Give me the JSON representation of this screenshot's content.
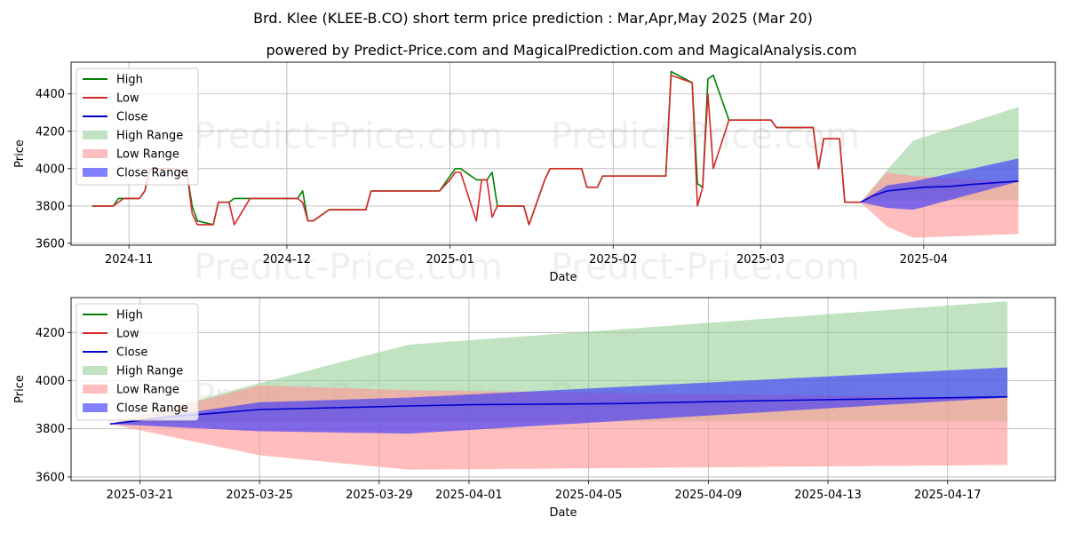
{
  "page": {
    "title": "Brd. Klee (KLEE-B.CO) short term price prediction : Mar,Apr,May 2025 (Mar 20)",
    "subtitle": "powered by Predict-Price.com and MagicalPrediction.com and MagicalAnalysis.com",
    "watermark": "Predict-Price.com"
  },
  "colors": {
    "high": "#008000",
    "low": "#d62728",
    "close": "#0000cc",
    "high_range": "#98d098",
    "low_range": "#ff9a9a",
    "close_range": "#3434ff"
  },
  "legend": [
    "High",
    "Low",
    "Close",
    "High Range",
    "Low Range",
    "Close Range"
  ],
  "chart_data": [
    {
      "type": "line",
      "name": "history",
      "xlabel": "Date",
      "ylabel": "Price",
      "xlim": [
        "2024-10-21",
        "2025-04-26"
      ],
      "ylim": [
        3590,
        4570
      ],
      "xticks": [
        "2024-11-01",
        "2024-12-01",
        "2025-01-01",
        "2025-02-01",
        "2025-03-01",
        "2025-04-01"
      ],
      "xtick_labels": [
        "2024-11",
        "2024-12",
        "2025-01",
        "2025-02",
        "2025-03",
        "2025-04"
      ],
      "yticks": [
        3600,
        3800,
        4000,
        4200,
        4400
      ],
      "grid": true,
      "series": [
        {
          "name": "High",
          "points": [
            [
              "2024-10-25",
              3800
            ],
            [
              "2024-10-29",
              3800
            ],
            [
              "2024-10-30",
              3840
            ],
            [
              "2024-11-03",
              3840
            ],
            [
              "2024-11-04",
              3880
            ],
            [
              "2024-11-05",
              4000
            ],
            [
              "2024-11-07",
              4000
            ],
            [
              "2024-11-08",
              4000
            ],
            [
              "2024-11-10",
              4000
            ],
            [
              "2024-11-11",
              3980
            ],
            [
              "2024-11-12",
              3980
            ],
            [
              "2024-11-13",
              3800
            ],
            [
              "2024-11-14",
              3720
            ],
            [
              "2024-11-17",
              3700
            ],
            [
              "2024-11-18",
              3820
            ],
            [
              "2024-11-20",
              3820
            ],
            [
              "2024-11-21",
              3840
            ],
            [
              "2024-11-25",
              3840
            ],
            [
              "2024-12-01",
              3840
            ],
            [
              "2024-12-03",
              3840
            ],
            [
              "2024-12-04",
              3880
            ],
            [
              "2024-12-05",
              3720
            ],
            [
              "2024-12-06",
              3720
            ],
            [
              "2024-12-08",
              3760
            ],
            [
              "2024-12-09",
              3780
            ],
            [
              "2024-12-16",
              3780
            ],
            [
              "2024-12-17",
              3880
            ],
            [
              "2024-12-30",
              3880
            ],
            [
              "2025-01-01",
              3960
            ],
            [
              "2025-01-02",
              4000
            ],
            [
              "2025-01-03",
              4000
            ],
            [
              "2025-01-06",
              3940
            ],
            [
              "2025-01-08",
              3940
            ],
            [
              "2025-01-09",
              3980
            ],
            [
              "2025-01-10",
              3800
            ],
            [
              "2025-01-15",
              3800
            ],
            [
              "2025-01-16",
              3700
            ],
            [
              "2025-01-19",
              3940
            ],
            [
              "2025-01-20",
              4000
            ],
            [
              "2025-01-26",
              4000
            ],
            [
              "2025-01-27",
              3900
            ],
            [
              "2025-01-29",
              3900
            ],
            [
              "2025-01-30",
              3960
            ],
            [
              "2025-02-11",
              3960
            ],
            [
              "2025-02-12",
              4520
            ],
            [
              "2025-02-16",
              4460
            ],
            [
              "2025-02-17",
              3920
            ],
            [
              "2025-02-18",
              3900
            ],
            [
              "2025-02-19",
              4480
            ],
            [
              "2025-02-20",
              4500
            ],
            [
              "2025-02-23",
              4260
            ],
            [
              "2025-03-03",
              4260
            ],
            [
              "2025-03-04",
              4220
            ],
            [
              "2025-03-11",
              4220
            ],
            [
              "2025-03-12",
              4000
            ],
            [
              "2025-03-13",
              4160
            ],
            [
              "2025-03-16",
              4160
            ],
            [
              "2025-03-17",
              3820
            ],
            [
              "2025-03-20",
              3820
            ]
          ]
        },
        {
          "name": "Low",
          "points": [
            [
              "2024-10-25",
              3800
            ],
            [
              "2024-10-29",
              3800
            ],
            [
              "2024-10-31",
              3840
            ],
            [
              "2024-11-03",
              3840
            ],
            [
              "2024-11-04",
              3880
            ],
            [
              "2024-11-05",
              4000
            ],
            [
              "2024-11-07",
              4000
            ],
            [
              "2024-11-08",
              4000
            ],
            [
              "2024-11-10",
              4000
            ],
            [
              "2024-11-11",
              3980
            ],
            [
              "2024-11-12",
              3980
            ],
            [
              "2024-11-13",
              3760
            ],
            [
              "2024-11-14",
              3700
            ],
            [
              "2024-11-17",
              3700
            ],
            [
              "2024-11-18",
              3820
            ],
            [
              "2024-11-20",
              3820
            ],
            [
              "2024-11-21",
              3700
            ],
            [
              "2024-11-24",
              3840
            ],
            [
              "2024-12-01",
              3840
            ],
            [
              "2024-12-03",
              3840
            ],
            [
              "2024-12-04",
              3820
            ],
            [
              "2024-12-05",
              3720
            ],
            [
              "2024-12-06",
              3720
            ],
            [
              "2024-12-08",
              3760
            ],
            [
              "2024-12-09",
              3780
            ],
            [
              "2024-12-16",
              3780
            ],
            [
              "2024-12-17",
              3880
            ],
            [
              "2024-12-30",
              3880
            ],
            [
              "2025-01-01",
              3940
            ],
            [
              "2025-01-02",
              3980
            ],
            [
              "2025-01-03",
              3980
            ],
            [
              "2025-01-06",
              3720
            ],
            [
              "2025-01-07",
              3940
            ],
            [
              "2025-01-08",
              3940
            ],
            [
              "2025-01-09",
              3740
            ],
            [
              "2025-01-10",
              3800
            ],
            [
              "2025-01-15",
              3800
            ],
            [
              "2025-01-16",
              3700
            ],
            [
              "2025-01-19",
              3940
            ],
            [
              "2025-01-20",
              4000
            ],
            [
              "2025-01-26",
              4000
            ],
            [
              "2025-01-27",
              3900
            ],
            [
              "2025-01-29",
              3900
            ],
            [
              "2025-01-30",
              3960
            ],
            [
              "2025-02-11",
              3960
            ],
            [
              "2025-02-12",
              4500
            ],
            [
              "2025-02-16",
              4460
            ],
            [
              "2025-02-17",
              3800
            ],
            [
              "2025-02-18",
              3900
            ],
            [
              "2025-02-19",
              4400
            ],
            [
              "2025-02-20",
              4000
            ],
            [
              "2025-02-23",
              4260
            ],
            [
              "2025-03-03",
              4260
            ],
            [
              "2025-03-04",
              4220
            ],
            [
              "2025-03-11",
              4220
            ],
            [
              "2025-03-12",
              4000
            ],
            [
              "2025-03-13",
              4160
            ],
            [
              "2025-03-16",
              4160
            ],
            [
              "2025-03-17",
              3820
            ],
            [
              "2025-03-20",
              3820
            ]
          ]
        },
        {
          "name": "Close",
          "points": [
            [
              "2025-03-20",
              3820
            ],
            [
              "2025-03-22",
              3850
            ],
            [
              "2025-03-25",
              3880
            ],
            [
              "2025-03-30",
              3895
            ],
            [
              "2025-04-01",
              3900
            ],
            [
              "2025-04-06",
              3905
            ],
            [
              "2025-04-10",
              3915
            ],
            [
              "2025-04-15",
              3925
            ],
            [
              "2025-04-19",
              3933
            ]
          ]
        }
      ],
      "ranges": [
        {
          "name": "High Range",
          "points": [
            [
              "2025-03-20",
              3820,
              3820
            ],
            [
              "2025-03-25",
              3990,
              3830
            ],
            [
              "2025-03-30",
              4150,
              3830
            ],
            [
              "2025-04-19",
              4330,
              3830
            ]
          ]
        },
        {
          "name": "Low Range",
          "points": [
            [
              "2025-03-20",
              3820,
              3820
            ],
            [
              "2025-03-25",
              3980,
              3690
            ],
            [
              "2025-03-30",
              3960,
              3630
            ],
            [
              "2025-04-19",
              3930,
              3650
            ]
          ]
        },
        {
          "name": "Close Range",
          "points": [
            [
              "2025-03-20",
              3820,
              3820
            ],
            [
              "2025-03-25",
              3910,
              3790
            ],
            [
              "2025-03-30",
              3930,
              3780
            ],
            [
              "2025-04-19",
              4055,
              3930
            ]
          ]
        }
      ]
    },
    {
      "type": "line",
      "name": "forecast",
      "xlabel": "Date",
      "ylabel": "Price",
      "xlim": [
        "2025-03-18.7",
        "2025-04-20.6"
      ],
      "ylim": [
        3585,
        4345
      ],
      "xticks": [
        "2025-03-21",
        "2025-03-25",
        "2025-03-29",
        "2025-04-01",
        "2025-04-05",
        "2025-04-09",
        "2025-04-13",
        "2025-04-17"
      ],
      "xtick_labels": [
        "2025-03-21",
        "2025-03-25",
        "2025-03-29",
        "2025-04-01",
        "2025-04-05",
        "2025-04-09",
        "2025-04-13",
        "2025-04-17"
      ],
      "yticks": [
        3600,
        3800,
        4000,
        4200
      ],
      "grid": true,
      "series": [
        {
          "name": "Close",
          "points": [
            [
              "2025-03-20",
              3820
            ],
            [
              "2025-03-22",
              3850
            ],
            [
              "2025-03-25",
              3880
            ],
            [
              "2025-03-30",
              3895
            ],
            [
              "2025-04-01",
              3900
            ],
            [
              "2025-04-06",
              3905
            ],
            [
              "2025-04-10",
              3915
            ],
            [
              "2025-04-15",
              3925
            ],
            [
              "2025-04-19",
              3933
            ]
          ]
        }
      ],
      "ranges": [
        {
          "name": "High Range",
          "points": [
            [
              "2025-03-20",
              3820,
              3820
            ],
            [
              "2025-03-25",
              3990,
              3830
            ],
            [
              "2025-03-30",
              4150,
              3830
            ],
            [
              "2025-04-19",
              4330,
              3830
            ]
          ]
        },
        {
          "name": "Low Range",
          "points": [
            [
              "2025-03-20",
              3820,
              3820
            ],
            [
              "2025-03-25",
              3980,
              3690
            ],
            [
              "2025-03-30",
              3960,
              3630
            ],
            [
              "2025-04-19",
              3930,
              3650
            ]
          ]
        },
        {
          "name": "Close Range",
          "points": [
            [
              "2025-03-20",
              3820,
              3820
            ],
            [
              "2025-03-25",
              3910,
              3790
            ],
            [
              "2025-03-30",
              3930,
              3780
            ],
            [
              "2025-04-19",
              4055,
              3930
            ]
          ]
        }
      ]
    }
  ]
}
